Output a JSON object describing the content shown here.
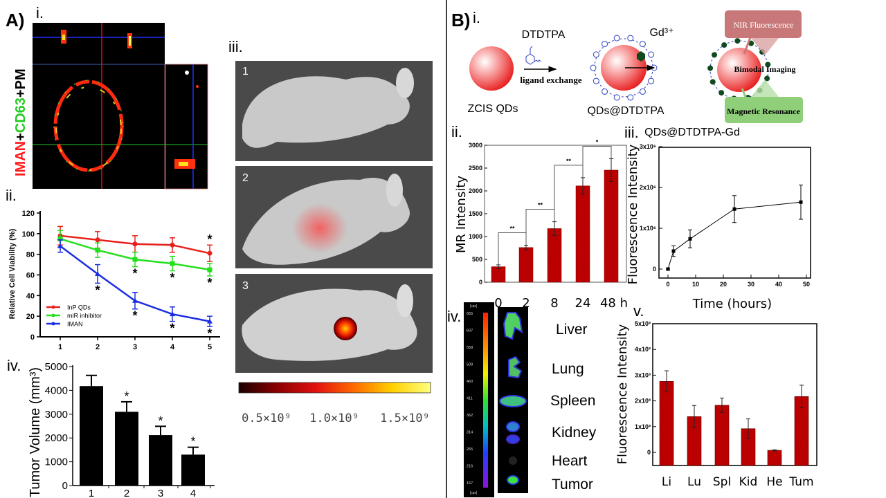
{
  "panels": {
    "A": "A)",
    "A_i": "i.",
    "A_ii": "ii.",
    "A_iii": "iii.",
    "A_iv": "iv.",
    "B": "B)",
    "B_i": "i.",
    "B_ii": "ii.",
    "B_iii": "iii.",
    "B_iv": "iv.",
    "B_v": "v."
  },
  "confocal": {
    "stain_label_parts": [
      {
        "text": "IMAN",
        "color": "#ff1a1a"
      },
      {
        "text": "+",
        "color": "#000000"
      },
      {
        "text": "CD63",
        "color": "#22cc22"
      },
      {
        "text": "+PM",
        "color": "#000000"
      }
    ]
  },
  "mouse_images": {
    "numbers": [
      "1",
      "2",
      "3"
    ],
    "colorbar_labels": [
      "0.5×10⁹",
      "1.0×10⁹",
      "1.5×10⁹"
    ],
    "colorbar_colors": [
      "#1a0000",
      "#8b0000",
      "#e01010",
      "#ff6a00",
      "#ffd000",
      "#ffff80"
    ]
  },
  "scheme": {
    "reagent1": "DTDTPA",
    "step1": "ligand exchange",
    "reagent2": "Gd³⁺",
    "product0": "ZCIS QDs",
    "product1": "QDs@DTDTPA",
    "product2": "QDs@DTDTPA-Gd",
    "box_nir": "NIR Fluorescence",
    "center": "Bimodal Imaging",
    "box_mr": "Magnetic Resonance",
    "colors": {
      "nir_box": "#c87878",
      "mr_box": "#8fcf7a",
      "qd": "#f04848",
      "ligand": "#3040c0",
      "gd": "#0f4a1f"
    }
  },
  "organ_imaging": {
    "unit": "[cps]",
    "scale_ticks": [
      "655",
      "607",
      "558",
      "509",
      "460",
      "411",
      "362",
      "314",
      "265",
      "216",
      "167"
    ],
    "organs": [
      "Liver",
      "Lung",
      "Spleen",
      "Kidney",
      "Heart",
      "Tumor"
    ]
  },
  "chart_data": [
    {
      "id": "A-ii",
      "type": "line",
      "ylabel": "Relative Cell Viability (%)",
      "xlabel": "",
      "x": [
        1,
        2,
        3,
        4,
        5
      ],
      "ylim": [
        0,
        120
      ],
      "yticks": [
        0,
        20,
        40,
        60,
        80,
        100,
        120
      ],
      "legend": "bottom-left",
      "series": [
        {
          "name": "InP QDs",
          "color": "#e8201c",
          "marker": "circle",
          "values": [
            98,
            94,
            90,
            89,
            81
          ],
          "errors": [
            9,
            8,
            8,
            7,
            8
          ],
          "significant": [
            false,
            false,
            false,
            false,
            true
          ]
        },
        {
          "name": "miR inhibitor",
          "color": "#22e01c",
          "marker": "square",
          "values": [
            95,
            84,
            75,
            71,
            65
          ],
          "errors": [
            8,
            7,
            7,
            7,
            6
          ],
          "significant": [
            false,
            false,
            true,
            true,
            true
          ]
        },
        {
          "name": "IMAN",
          "color": "#1a2ee0",
          "marker": "triangle",
          "values": [
            88,
            61,
            35,
            22,
            15
          ],
          "errors": [
            6,
            9,
            8,
            7,
            5
          ],
          "significant": [
            false,
            true,
            true,
            true,
            true
          ]
        }
      ],
      "significance_mark": "*"
    },
    {
      "id": "A-iv",
      "type": "bar",
      "ylabel": "Tumor Volume (mm³)",
      "categories": [
        "1",
        "2",
        "3",
        "4"
      ],
      "values": [
        4180,
        3100,
        2120,
        1300
      ],
      "errors": [
        450,
        420,
        370,
        310
      ],
      "significant": [
        false,
        true,
        true,
        true
      ],
      "significance_mark": "*",
      "ylim": [
        0,
        5000
      ],
      "yticks": [
        0,
        1000,
        2000,
        3000,
        4000,
        5000
      ],
      "color": "#000000"
    },
    {
      "id": "B-ii",
      "type": "bar",
      "ylabel": "MR Intensity",
      "categories": [
        "0",
        "2",
        "8",
        "24",
        "48 h"
      ],
      "values": [
        340,
        760,
        1175,
        2110,
        2455
      ],
      "errors": [
        40,
        50,
        150,
        180,
        250
      ],
      "ylim": [
        0,
        3000
      ],
      "yticks": [
        0,
        500,
        1000,
        1500,
        2000,
        2500,
        3000
      ],
      "color": "#c00000",
      "comparisons": [
        {
          "from": 0,
          "to": 1,
          "mark": "**"
        },
        {
          "from": 1,
          "to": 2,
          "mark": "**"
        },
        {
          "from": 2,
          "to": 3,
          "mark": "**"
        },
        {
          "from": 3,
          "to": 4,
          "mark": "*"
        }
      ]
    },
    {
      "id": "B-iii",
      "type": "line",
      "ylabel": "Fluorescence  Intensity",
      "xlabel": "Time (hours)",
      "x": [
        0,
        2,
        8,
        24,
        48
      ],
      "values": [
        0,
        440000,
        740000,
        1470000,
        1640000
      ],
      "errors": [
        20000,
        130000,
        220000,
        330000,
        420000
      ],
      "xlim": [
        -2,
        52
      ],
      "ylim": [
        -200000,
        3000000
      ],
      "xticks": [
        "0",
        "10",
        "20",
        "30",
        "40",
        "50"
      ],
      "yticks": [
        "0",
        "1x10⁶",
        "2x10⁶",
        "3x10⁶"
      ],
      "color": "#000000"
    },
    {
      "id": "B-v",
      "type": "bar",
      "ylabel": "Fluorescence  Intensity",
      "categories": [
        "Li",
        "Lu",
        "Spl",
        "Kid",
        "He",
        "Tum"
      ],
      "values": [
        2760,
        1390,
        1830,
        920,
        80,
        2170
      ],
      "errors": [
        410,
        430,
        280,
        380,
        20,
        440
      ],
      "ylim": [
        -500,
        5000
      ],
      "yticks": [
        "0",
        "1x10³",
        "2x10³",
        "3x10³",
        "4x10³",
        "5x10³"
      ],
      "color": "#c00000"
    }
  ]
}
